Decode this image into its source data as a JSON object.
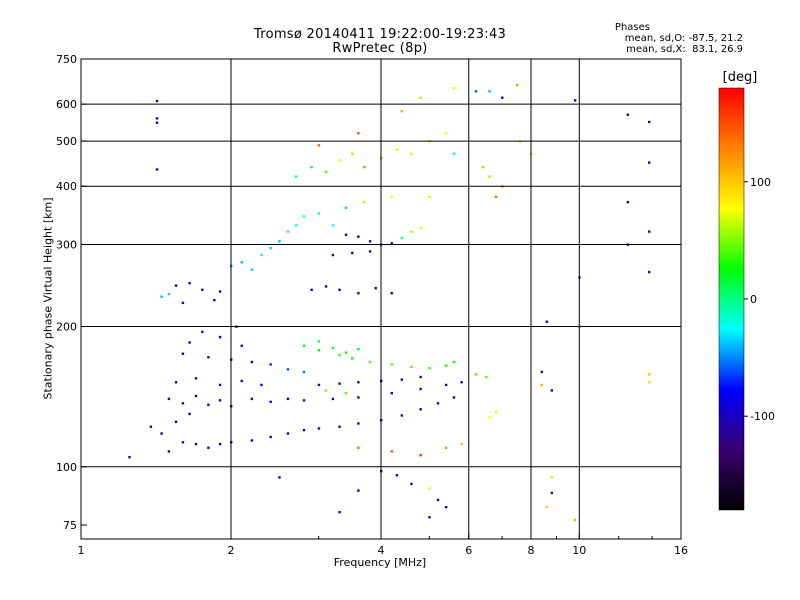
{
  "chart_data": {
    "type": "scatter",
    "title": "Tromsø 20140411 19:22:00-19:23:43",
    "subtitle": "RwPretec (8p)",
    "xlabel": "Frequency [MHz]",
    "ylabel": "Stationary phase Virtual Height [km]",
    "x_scale": "log",
    "y_scale": "log",
    "xlim": [
      1,
      16
    ],
    "ylim": [
      70,
      750
    ],
    "x_ticks": [
      1,
      2,
      4,
      6,
      8,
      10,
      16
    ],
    "x_tick_labels": [
      "1",
      "2",
      "4",
      "6",
      "8",
      "10",
      "16"
    ],
    "y_ticks": [
      75,
      100,
      200,
      300,
      400,
      500,
      600,
      750
    ],
    "y_tick_labels": [
      "75",
      "100",
      "200",
      "300",
      "400",
      "500",
      "600",
      "750"
    ],
    "x_gridlines": [
      2,
      4,
      6,
      8,
      10
    ],
    "y_gridlines": [
      100,
      200,
      300,
      400,
      500,
      600
    ],
    "grid": true,
    "colorbar": {
      "label": "[deg]",
      "range": [
        -180,
        180
      ],
      "ticks": [
        -100,
        0,
        100
      ],
      "tick_labels": [
        "-100",
        "0",
        "100"
      ],
      "colormap": "rainbow",
      "colors": [
        "#000000",
        "#3a0070",
        "#0000ff",
        "#00ffff",
        "#00ff00",
        "#ffff00",
        "#ff8000",
        "#ff0000"
      ]
    },
    "stats": {
      "heading": "Phases",
      "o_line": "mean, sd,O: -87.5, 21.2",
      "x_line": "mean, sd,X:  83.1, 26.9"
    },
    "series": [
      {
        "points": [
          [
            1.25,
            105,
            -120
          ],
          [
            1.38,
            122,
            -115
          ],
          [
            1.45,
            118,
            -100
          ],
          [
            1.5,
            108,
            -110
          ],
          [
            1.55,
            125,
            -105
          ],
          [
            1.6,
            113,
            -115
          ],
          [
            1.65,
            130,
            -100
          ],
          [
            1.7,
            112,
            -110
          ],
          [
            1.8,
            110,
            -105
          ],
          [
            1.9,
            112,
            -110
          ],
          [
            2.0,
            113,
            -105
          ],
          [
            2.2,
            114,
            -100
          ],
          [
            2.4,
            116,
            -95
          ],
          [
            2.6,
            118,
            -100
          ],
          [
            2.8,
            120,
            -95
          ],
          [
            3.0,
            121,
            -100
          ],
          [
            3.3,
            122,
            -95
          ],
          [
            3.6,
            124,
            -100
          ],
          [
            4.0,
            126,
            -95
          ],
          [
            4.4,
            129,
            -100
          ],
          [
            4.8,
            133,
            -95
          ],
          [
            5.2,
            137,
            -100
          ],
          [
            5.6,
            141,
            -95
          ]
        ]
      },
      {
        "points": [
          [
            1.5,
            140,
            -110
          ],
          [
            1.6,
            137,
            -105
          ],
          [
            1.7,
            142,
            -95
          ],
          [
            1.8,
            136,
            -100
          ],
          [
            1.9,
            139,
            -90
          ],
          [
            2.0,
            135,
            -95
          ],
          [
            2.2,
            140,
            -85
          ],
          [
            2.4,
            138,
            -80
          ],
          [
            2.6,
            140,
            -85
          ],
          [
            2.8,
            139,
            -75
          ],
          [
            1.55,
            152,
            -110
          ],
          [
            1.7,
            155,
            -105
          ],
          [
            1.9,
            150,
            -100
          ],
          [
            2.1,
            153,
            -95
          ],
          [
            2.3,
            150,
            -85
          ]
        ]
      },
      {
        "points": [
          [
            1.6,
            175,
            -110
          ],
          [
            1.8,
            172,
            -105
          ],
          [
            2.0,
            170,
            -95
          ],
          [
            2.2,
            168,
            -80
          ],
          [
            2.4,
            166,
            -70
          ],
          [
            2.6,
            162,
            -60
          ],
          [
            2.8,
            160,
            -50
          ],
          [
            1.65,
            185,
            -100
          ],
          [
            1.9,
            190,
            -95
          ],
          [
            2.1,
            182,
            -85
          ],
          [
            1.75,
            195,
            -100
          ],
          [
            2.05,
            200,
            -95
          ]
        ]
      },
      {
        "points": [
          [
            3.0,
            150,
            -110
          ],
          [
            3.3,
            151,
            -105
          ],
          [
            3.6,
            152,
            -100
          ],
          [
            4.0,
            153,
            -95
          ],
          [
            4.4,
            154,
            -105
          ],
          [
            4.8,
            156,
            -100
          ],
          [
            3.2,
            140,
            -110
          ],
          [
            3.6,
            141,
            -105
          ],
          [
            4.2,
            144,
            -100
          ],
          [
            4.8,
            147,
            -95
          ],
          [
            5.4,
            150,
            -100
          ],
          [
            5.8,
            152,
            -110
          ]
        ]
      },
      {
        "points": [
          [
            2.8,
            182,
            20
          ],
          [
            3.0,
            178,
            25
          ],
          [
            3.2,
            180,
            15
          ],
          [
            3.4,
            176,
            30
          ],
          [
            3.6,
            179,
            20
          ],
          [
            3.0,
            186,
            10
          ],
          [
            3.3,
            174,
            35
          ],
          [
            3.5,
            171,
            25
          ],
          [
            3.8,
            168,
            40
          ],
          [
            4.2,
            166,
            45
          ],
          [
            4.6,
            164,
            40
          ],
          [
            5.0,
            163,
            35
          ],
          [
            5.4,
            165,
            30
          ],
          [
            5.6,
            168,
            25
          ],
          [
            3.1,
            146,
            50
          ],
          [
            3.4,
            144,
            45
          ],
          [
            6.2,
            158,
            40
          ],
          [
            6.5,
            156,
            45
          ],
          [
            6.6,
            128,
            80
          ],
          [
            6.8,
            131,
            85
          ]
        ]
      },
      {
        "points": [
          [
            1.45,
            232,
            -40
          ],
          [
            1.5,
            235,
            -35
          ],
          [
            1.55,
            245,
            -95
          ],
          [
            1.65,
            248,
            -100
          ],
          [
            1.75,
            240,
            -105
          ],
          [
            1.85,
            228,
            -95
          ],
          [
            1.6,
            225,
            -90
          ],
          [
            1.9,
            238,
            -100
          ],
          [
            2.0,
            270,
            -45
          ],
          [
            2.1,
            275,
            -40
          ],
          [
            2.2,
            265,
            -35
          ],
          [
            2.3,
            285,
            -30
          ],
          [
            2.4,
            295,
            -35
          ],
          [
            2.5,
            305,
            -40
          ],
          [
            2.6,
            320,
            -30
          ],
          [
            2.7,
            330,
            -25
          ],
          [
            2.8,
            345,
            -20
          ],
          [
            3.0,
            350,
            -15
          ],
          [
            3.2,
            330,
            -25
          ],
          [
            3.4,
            315,
            -95
          ],
          [
            3.6,
            312,
            -100
          ],
          [
            3.8,
            305,
            -105
          ],
          [
            4.0,
            300,
            -100
          ],
          [
            4.2,
            302,
            -95
          ],
          [
            3.2,
            285,
            -110
          ],
          [
            3.5,
            288,
            -105
          ],
          [
            3.8,
            290,
            -100
          ],
          [
            4.4,
            310,
            -10
          ],
          [
            4.6,
            320,
            60
          ],
          [
            4.8,
            325,
            80
          ],
          [
            2.9,
            240,
            -100
          ],
          [
            3.1,
            244,
            -105
          ],
          [
            3.3,
            240,
            -95
          ],
          [
            3.6,
            236,
            -100
          ],
          [
            3.9,
            242,
            -105
          ],
          [
            4.2,
            236,
            -100
          ],
          [
            3.4,
            360,
            20
          ],
          [
            3.7,
            370,
            60
          ],
          [
            4.2,
            380,
            80
          ],
          [
            5.0,
            380,
            90
          ]
        ]
      },
      {
        "points": [
          [
            2.7,
            420,
            -10
          ],
          [
            2.9,
            440,
            10
          ],
          [
            3.1,
            430,
            40
          ],
          [
            3.3,
            455,
            70
          ],
          [
            3.5,
            470,
            100
          ],
          [
            3.7,
            440,
            130
          ],
          [
            4.0,
            460,
            110
          ],
          [
            4.3,
            480,
            90
          ],
          [
            4.6,
            470,
            70
          ],
          [
            5.0,
            500,
            60
          ],
          [
            5.4,
            520,
            80
          ],
          [
            5.6,
            470,
            -20
          ],
          [
            3.0,
            490,
            140
          ],
          [
            3.6,
            520,
            150
          ],
          [
            4.4,
            580,
            110
          ],
          [
            4.8,
            620,
            60
          ],
          [
            5.6,
            650,
            70
          ],
          [
            6.2,
            640,
            -60
          ],
          [
            6.6,
            640,
            -40
          ],
          [
            7.0,
            620,
            -90
          ],
          [
            7.5,
            660,
            120
          ],
          [
            6.4,
            440,
            110
          ],
          [
            6.6,
            420,
            100
          ],
          [
            6.8,
            380,
            140
          ],
          [
            7.0,
            400,
            130
          ],
          [
            7.6,
            500,
            90
          ],
          [
            8.0,
            470,
            60
          ]
        ]
      },
      {
        "points": [
          [
            1.42,
            610,
            -120
          ],
          [
            1.42,
            560,
            -110
          ],
          [
            1.42,
            548,
            -105
          ],
          [
            1.42,
            435,
            -100
          ],
          [
            9.8,
            612,
            -100
          ],
          [
            12.5,
            570,
            -100
          ],
          [
            13.8,
            550,
            -95
          ],
          [
            12.5,
            370,
            -105
          ],
          [
            13.8,
            450,
            -100
          ],
          [
            12.5,
            300,
            -100
          ],
          [
            13.8,
            320,
            -95
          ],
          [
            13.8,
            262,
            -100
          ],
          [
            13.8,
            158,
            100
          ],
          [
            13.8,
            152,
            90
          ],
          [
            10.0,
            255,
            -100
          ],
          [
            10.0,
            200,
            -40
          ],
          [
            8.6,
            205,
            -100
          ],
          [
            8.8,
            146,
            -100
          ],
          [
            8.4,
            160,
            -100
          ],
          [
            8.4,
            150,
            110
          ],
          [
            8.8,
            95,
            60
          ],
          [
            8.8,
            88,
            -100
          ],
          [
            8.6,
            82,
            100
          ],
          [
            9.8,
            77,
            110
          ]
        ]
      },
      {
        "points": [
          [
            2.5,
            95,
            -110
          ],
          [
            3.3,
            80,
            -95
          ],
          [
            3.6,
            89,
            -100
          ],
          [
            4.0,
            98,
            -100
          ],
          [
            4.3,
            96,
            -95
          ],
          [
            4.6,
            92,
            -100
          ],
          [
            5.0,
            90,
            80
          ],
          [
            5.2,
            85,
            -100
          ],
          [
            5.0,
            78,
            -100
          ],
          [
            5.4,
            82,
            -95
          ],
          [
            3.6,
            110,
            140
          ],
          [
            4.2,
            108,
            150
          ],
          [
            4.8,
            106,
            160
          ],
          [
            5.4,
            110,
            120
          ],
          [
            5.8,
            112,
            100
          ]
        ]
      }
    ]
  }
}
